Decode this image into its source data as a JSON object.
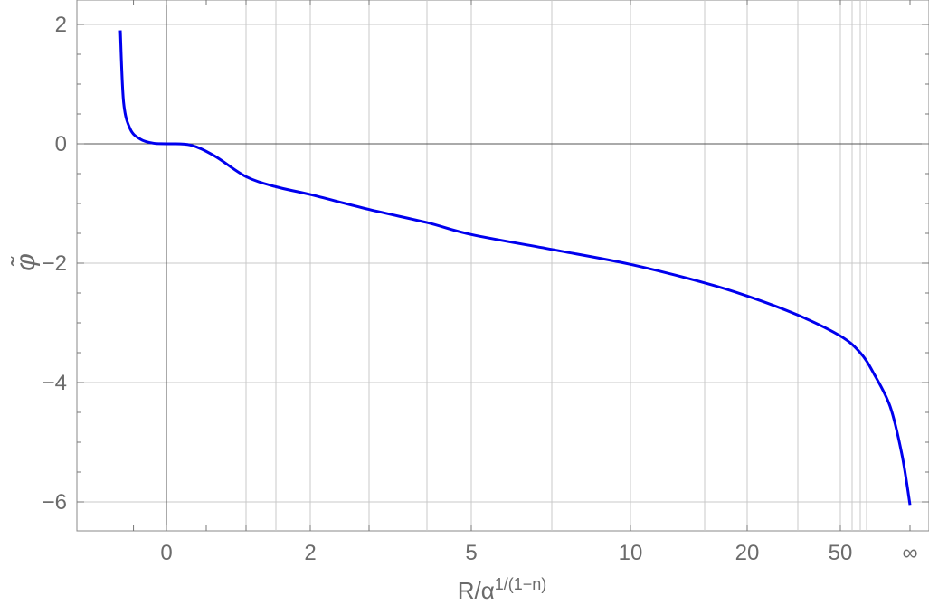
{
  "chart_data": {
    "type": "line",
    "title": "",
    "xlabel": {
      "base": "R/α",
      "superscript": "1/(1−n)"
    },
    "ylabel": "φ̃",
    "x_scale": "compactified (non-uniform)",
    "ylim": [
      -6.5,
      2.3
    ],
    "grid": true,
    "x_ticks": [
      "0",
      "2",
      "5",
      "10",
      "20",
      "50",
      "∞"
    ],
    "y_ticks": [
      "2",
      "0",
      "−2",
      "−4",
      "−6"
    ],
    "colors": {
      "series": "#0000ee",
      "grid": "#c8c8c8",
      "axis": "#555555",
      "frame": "#888888",
      "text": "#6b6b6b"
    },
    "series": [
      {
        "x": [
          "-0.7",
          "-0.65",
          "-0.55",
          "-0.4",
          "-0.2",
          "0",
          "0.3",
          "0.6",
          "1",
          "1.5",
          "2",
          "3",
          "4",
          "5",
          "7",
          "10",
          "15",
          "20",
          "30",
          "50",
          "70",
          "100",
          "200",
          "500",
          "∞"
        ],
        "y": [
          1.9,
          0.7,
          0.25,
          0.08,
          0.01,
          0.0,
          -0.02,
          -0.2,
          -0.55,
          -0.72,
          -0.85,
          -1.1,
          -1.32,
          -1.52,
          -1.77,
          -2.02,
          -2.33,
          -2.55,
          -2.87,
          -3.22,
          -3.5,
          -3.85,
          -4.4,
          -5.2,
          -6.05
        ]
      }
    ]
  }
}
